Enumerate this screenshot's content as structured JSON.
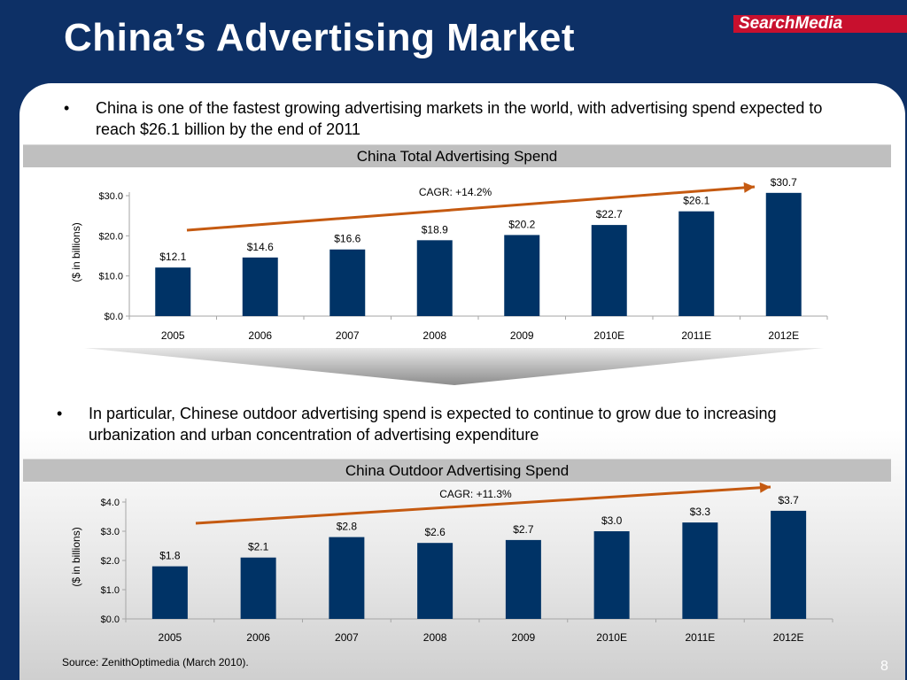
{
  "slide": {
    "title": "China’s Advertising Market",
    "logo_text": "SearchMedia",
    "bullet1": "China is one of the fastest growing advertising markets in the world, with advertising spend expected to reach $26.1 billion by the end of 2011",
    "bullet2": "In particular, Chinese outdoor advertising spend is expected to continue to grow due to increasing urbanization and urban concentration of advertising expenditure",
    "bullet_symbol": "•",
    "source": "Source: ZenithOptimedia (March 2010).",
    "page_number": "8",
    "colors": {
      "background": "#0d3066",
      "bar": "#003366",
      "trend_arrow": "#c55a11",
      "header_band": "#bfbfbf",
      "logo": "#c8102e"
    }
  },
  "chart_data": [
    {
      "type": "bar",
      "title": "China Total Advertising Spend",
      "ylabel": "($ in billions)",
      "categories": [
        "2005",
        "2006",
        "2007",
        "2008",
        "2009",
        "2010E",
        "2011E",
        "2012E"
      ],
      "values": [
        12.1,
        14.6,
        16.6,
        18.9,
        20.2,
        22.7,
        26.1,
        30.7
      ],
      "data_labels": [
        "$12.1",
        "$14.6",
        "$16.6",
        "$18.9",
        "$20.2",
        "$22.7",
        "$26.1",
        "$30.7"
      ],
      "ylim": [
        0,
        30
      ],
      "yticks": [
        0,
        10,
        20,
        30
      ],
      "ytick_labels": [
        "$0.0",
        "$10.0",
        "$20.0",
        "$30.0"
      ],
      "annotation": "CAGR: +14.2%",
      "grid": false
    },
    {
      "type": "bar",
      "title": "China Outdoor Advertising Spend",
      "ylabel": "($ in billions)",
      "categories": [
        "2005",
        "2006",
        "2007",
        "2008",
        "2009",
        "2010E",
        "2011E",
        "2012E"
      ],
      "values": [
        1.8,
        2.1,
        2.8,
        2.6,
        2.7,
        3.0,
        3.3,
        3.7
      ],
      "data_labels": [
        "$1.8",
        "$2.1",
        "$2.8",
        "$2.6",
        "$2.7",
        "$3.0",
        "$3.3",
        "$3.7"
      ],
      "ylim": [
        0,
        4
      ],
      "yticks": [
        0,
        1,
        2,
        3,
        4
      ],
      "ytick_labels": [
        "$0.0",
        "$1.0",
        "$2.0",
        "$3.0",
        "$4.0"
      ],
      "annotation": "CAGR: +11.3%",
      "grid": false
    }
  ]
}
